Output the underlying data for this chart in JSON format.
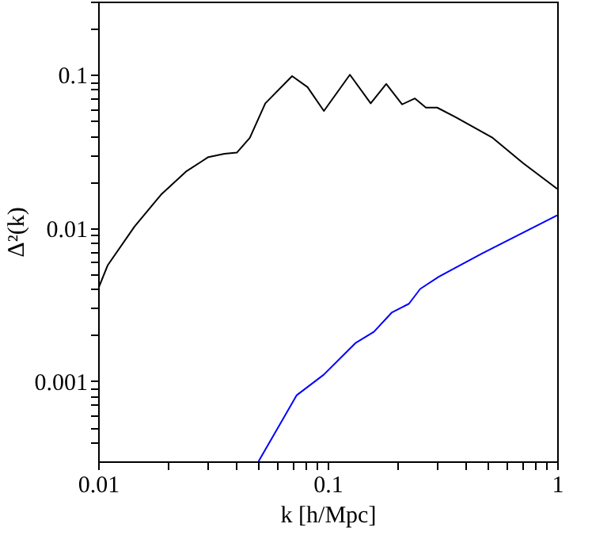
{
  "chart_data": {
    "type": "line",
    "xlabel": "k [h/Mpc]",
    "ylabel": "Δ²(k)",
    "log": "xy",
    "grid": false,
    "line_style": "solid",
    "marker": "none",
    "xlim": [
      0.01,
      1
    ],
    "ylim": [
      0.0003,
      0.3
    ],
    "xticks": [
      0.01,
      {
        "value": 0.02,
        "label": null
      },
      {
        "value": 0.03,
        "label": null
      },
      {
        "value": 0.04,
        "label": null
      },
      {
        "value": 0.05,
        "label": null
      },
      {
        "value": 0.06,
        "label": null
      },
      {
        "value": 0.07,
        "label": null
      },
      {
        "value": 0.08,
        "label": null
      },
      {
        "value": 0.09,
        "label": null
      },
      0.1,
      {
        "value": 0.2,
        "label": null
      },
      {
        "value": 0.3,
        "label": null
      },
      {
        "value": 0.4,
        "label": null
      },
      {
        "value": 0.5,
        "label": null
      },
      {
        "value": 0.6,
        "label": null
      },
      {
        "value": 0.7,
        "label": null
      },
      {
        "value": 0.8,
        "label": null
      },
      {
        "value": 0.9,
        "label": null
      },
      1
    ],
    "yticks": [
      {
        "value": 0.0004,
        "label": null
      },
      {
        "value": 0.0005,
        "label": null
      },
      {
        "value": 0.0006,
        "label": null
      },
      {
        "value": 0.0007,
        "label": null
      },
      {
        "value": 0.0008,
        "label": null
      },
      {
        "value": 0.0009,
        "label": null
      },
      0.001,
      {
        "value": 0.002,
        "label": null
      },
      {
        "value": 0.003,
        "label": null
      },
      {
        "value": 0.004,
        "label": null
      },
      {
        "value": 0.005,
        "label": null
      },
      {
        "value": 0.006,
        "label": null
      },
      {
        "value": 0.007,
        "label": null
      },
      {
        "value": 0.008,
        "label": null
      },
      {
        "value": 0.009,
        "label": null
      },
      0.01,
      {
        "value": 0.02,
        "label": null
      },
      {
        "value": 0.03,
        "label": null
      },
      {
        "value": 0.04,
        "label": null
      },
      {
        "value": 0.05,
        "label": null
      },
      {
        "value": 0.06,
        "label": null
      },
      {
        "value": 0.07,
        "label": null
      },
      {
        "value": 0.08,
        "label": null
      },
      {
        "value": 0.09,
        "label": null
      },
      0.1,
      {
        "value": 0.2,
        "label": null
      },
      {
        "value": 0.3,
        "label": null
      }
    ],
    "series": [
      {
        "color": "#000000",
        "x": [
          0.01,
          0.011,
          0.0144,
          0.0188,
          0.0243,
          0.0302,
          0.0355,
          0.0402,
          0.0458,
          0.0535,
          0.07,
          0.0817,
          0.0963,
          0.125,
          0.154,
          0.18,
          0.211,
          0.24,
          0.268,
          0.3,
          0.36,
          0.52,
          0.71,
          1.0
        ],
        "values": [
          0.004,
          0.0057,
          0.0102,
          0.0165,
          0.0235,
          0.029,
          0.0305,
          0.031,
          0.0387,
          0.065,
          0.098,
          0.083,
          0.058,
          0.1,
          0.065,
          0.087,
          0.064,
          0.07,
          0.061,
          0.061,
          0.053,
          0.039,
          0.0265,
          0.018
        ]
      },
      {
        "color": "#0000ff",
        "x": [
          0.05,
          0.0733,
          0.096,
          0.132,
          0.159,
          0.19,
          0.226,
          0.253,
          0.305,
          0.36,
          0.47,
          1.0
        ],
        "values": [
          0.0003,
          0.00081,
          0.0011,
          0.00177,
          0.0021,
          0.0028,
          0.0032,
          0.004,
          0.0048,
          0.0055,
          0.0068,
          0.0121
        ]
      }
    ]
  }
}
